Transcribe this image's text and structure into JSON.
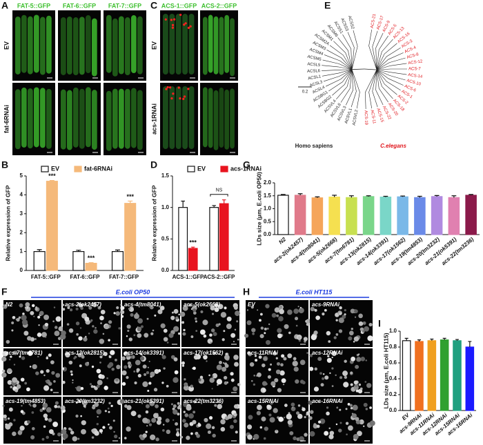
{
  "figure": {
    "a": {
      "letter": "A",
      "columns": [
        "FAT-5::GFP",
        "FAT-6::GFP",
        "FAT-7::GFP"
      ],
      "rows": [
        "EV",
        "fat-6RNAi"
      ]
    },
    "c": {
      "letter": "C",
      "columns": [
        "ACS-1::GFP",
        "ACS-2::GFP"
      ],
      "rows": [
        "EV",
        "acs-1RNAi"
      ]
    },
    "e": {
      "letter": "E",
      "scale_label": "0.2",
      "groups": [
        {
          "name": "Homo sapiens",
          "color": "#222222",
          "leaves": [
            "ACSS2",
            "ACSS3",
            "ACSS1",
            "ACSM6",
            "ACSM1",
            "ACSM2A",
            "ACSM3",
            "ACSM4",
            "ACSM5",
            "ACSL5",
            "ACSL6",
            "ACSL1",
            "ACSL3",
            "ACSL4",
            "ACSBG1",
            "ACSBG2",
            "ACSVL4",
            "ACSVL6",
            "ACSVL3",
            "ACSVL1",
            "ACSVL2"
          ]
        },
        {
          "name": "C.elegans",
          "color": "#e0151b",
          "leaves": [
            "ACS-19",
            "ACS-11",
            "ACS-15",
            "ACS-22",
            "ACS-20",
            "ACS-18",
            "ACS-2",
            "ACS-1",
            "ACS-6",
            "ACS-10",
            "ACS-14",
            "ACS-7",
            "ACS-12",
            "ACS-8",
            "ACS-4",
            "ACS-3",
            "ACS-16",
            "ACS-13",
            "ACS-5",
            "ACS-9",
            "ACS-17",
            "ACS-21"
          ]
        }
      ]
    },
    "f": {
      "letter": "F",
      "header": "E.coli OP50",
      "labels": [
        "N2",
        "acs-2(ok2457)",
        "acs-4(tm8041)",
        "acs-5(ok2668)",
        "acs-7(tm6781)",
        "acs-13(ok2815)",
        "acs-14(ok3391)",
        "acs-17(ok1562)",
        "acs-19(tm4853)",
        "acs-20(tm3232)",
        "acs-21(ok5391)",
        "acs-22(tm3236)"
      ]
    },
    "h": {
      "letter": "H",
      "header": "E.coli HT115",
      "labels": [
        "EV",
        "acs-9RNAi",
        "acs-11RNAi",
        "acs-12RNAi",
        "acs-15RNAi",
        "acs-16RNAi"
      ]
    }
  },
  "chart_data": [
    {
      "type": "bar",
      "letter": "B",
      "ylabel": "Relative expression of GFP",
      "categories": [
        "FAT-5::GFP",
        "FAT-6::GFP",
        "FAT-7::GFP"
      ],
      "series": [
        {
          "name": "EV",
          "color": "#ffffff",
          "values": [
            1,
            1,
            1
          ],
          "errors": [
            0.1,
            0.07,
            0.08
          ]
        },
        {
          "name": "fat-6RNAi",
          "color": "#f5b97a",
          "values": [
            4.72,
            0.38,
            3.55
          ],
          "errors": [
            0.04,
            0.03,
            0.12
          ],
          "significance": [
            "***",
            "***",
            "***"
          ]
        }
      ],
      "ylim": [
        0,
        5
      ],
      "yticks": [
        0,
        1,
        2,
        3,
        4,
        5
      ],
      "legend": "top"
    },
    {
      "type": "bar",
      "letter": "D",
      "ylabel": "Relative expression of GFP",
      "categories": [
        "ACS-1::GFP",
        "ACS-2::GFP"
      ],
      "series": [
        {
          "name": "EV",
          "color": "#ffffff",
          "values": [
            1.0,
            1.0
          ],
          "errors": [
            0.1,
            0.03
          ]
        },
        {
          "name": "acs-1RNAi",
          "color": "#e8141f",
          "values": [
            0.35,
            1.06
          ],
          "errors": [
            0.02,
            0.06
          ],
          "significance": [
            "***",
            null
          ]
        }
      ],
      "comparisons": [
        null,
        "NS"
      ],
      "ylim": [
        0,
        1.5
      ],
      "yticks": [
        {
          "value": 0,
          "label": "0.0"
        },
        {
          "value": 0.5,
          "label": "0.5"
        },
        {
          "value": 1,
          "label": "1.0"
        },
        {
          "value": 1.5,
          "label": "1.5"
        }
      ],
      "legend": "top"
    },
    {
      "type": "bar",
      "letter": "G",
      "ylabel": "LDs size (μm, E.coli OP50)",
      "categories": [
        "N2",
        "acs-2(ok2457)",
        "acs-4(tm8041)",
        "acs-5(ok2668)",
        "acs-7(tm6781)",
        "acs-13(ok2815)",
        "acs-14(ok3391)",
        "acs-17(ok1562)",
        "acs-19(tm4853)",
        "acs-20(tm3232)",
        "acs-21(ok5391)",
        "acs-22(tm3236)"
      ],
      "values": [
        1.52,
        1.52,
        1.42,
        1.45,
        1.43,
        1.47,
        1.45,
        1.46,
        1.43,
        1.47,
        1.43,
        1.52
      ],
      "errors": [
        0.03,
        0.06,
        0.04,
        0.07,
        0.07,
        0.03,
        0.03,
        0.03,
        0.05,
        0.04,
        0.07,
        0.03
      ],
      "colors": [
        "#ffffff",
        "#e07a8a",
        "#f5a55a",
        "#f5e050",
        "#c8e050",
        "#7ad68a",
        "#7ad6c8",
        "#7ab8e8",
        "#6a8ae8",
        "#b08ae0",
        "#e080b0",
        "#8b1a4a"
      ],
      "ylim": [
        0,
        2
      ],
      "yticks": [
        {
          "value": 0,
          "label": "0.0"
        },
        {
          "value": 0.5,
          "label": "0.5"
        },
        {
          "value": 1,
          "label": "1.0"
        },
        {
          "value": 1.5,
          "label": "1.5"
        },
        {
          "value": 2,
          "label": "2.0"
        }
      ]
    },
    {
      "type": "bar",
      "letter": "I",
      "ylabel": "LDs size (μm, E.coli HT115)",
      "categories": [
        "EV",
        "acs-9RNAi",
        "acs-11RNAi",
        "acs-12RNAi",
        "acs-15RNAi",
        "acs-16RNAi"
      ],
      "values": [
        0.88,
        0.87,
        0.88,
        0.89,
        0.88,
        0.8
      ],
      "errors": [
        0.03,
        0.02,
        0.02,
        0.02,
        0.015,
        0.07
      ],
      "colors": [
        "#ffffff",
        "#f07020",
        "#f0a020",
        "#30a030",
        "#20a080",
        "#1a1aff"
      ],
      "ylim": [
        0,
        1
      ],
      "yticks": [
        {
          "value": 0,
          "label": "0.0"
        },
        {
          "value": 0.2,
          "label": "0.2"
        },
        {
          "value": 0.4,
          "label": "0.4"
        },
        {
          "value": 0.6,
          "label": "0.6"
        },
        {
          "value": 0.8,
          "label": "0.8"
        },
        {
          "value": 1,
          "label": "1.0"
        }
      ]
    }
  ]
}
